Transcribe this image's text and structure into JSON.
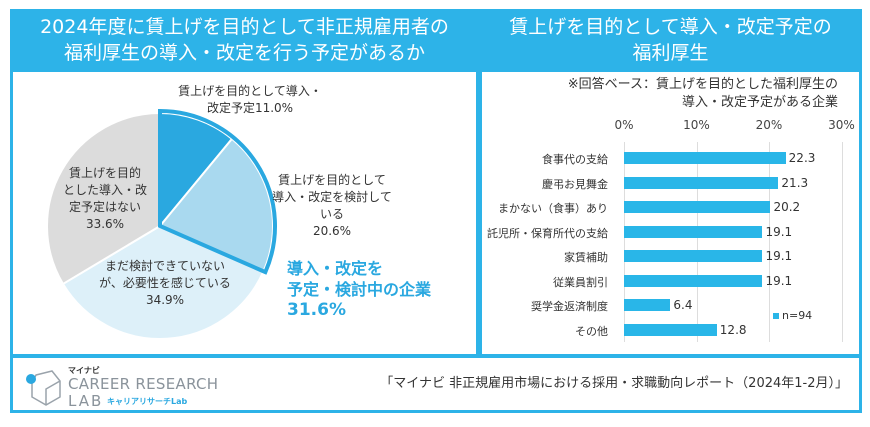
{
  "left": {
    "title_line1": "2024年度に賃上げを目的として非正規雇用者の",
    "title_line2": "福利厚生の導入・改定を行う予定があるか"
  },
  "right": {
    "title_line1": "賃上げを目的として導入・改定予定の",
    "title_line2": "福利厚生"
  },
  "chart_data": [
    {
      "type": "pie",
      "slices": [
        {
          "label_line1": "賃上げを目的として導入・",
          "label_line2": "改定予定11.0%",
          "value": 11.0,
          "color": "#2aa8e0"
        },
        {
          "label_line1": "賃上げを目的として",
          "label_line2": "導入・改定を検討して",
          "label_line3": "いる",
          "pct": "20.6%",
          "value": 20.6,
          "color": "#a9d9ef"
        },
        {
          "label_line1": "まだ検討できていない",
          "label_line2": "が、必要性を感じている",
          "pct": "34.9%",
          "value": 34.9,
          "color": "#ddf0f9"
        },
        {
          "label_line1": "賃上げを目的",
          "label_line2": "とした導入・改",
          "label_line3": "定予定はない",
          "pct": "33.6%",
          "value": 33.6,
          "color": "#dcdcdc"
        }
      ],
      "callout": {
        "line1": "導入・改定を",
        "line2": "予定・検討中の企業",
        "line3": "31.6%",
        "color": "#2aa8e0"
      }
    },
    {
      "type": "bar",
      "orientation": "horizontal",
      "note_line1": "※回答ベース：賃上げを目的とした福利厚生の",
      "note_line2": "導入・改定予定がある企業",
      "xlim": [
        0,
        30
      ],
      "ticks": [
        "0%",
        "10%",
        "20%",
        "30%"
      ],
      "categories": [
        "食事代の支給",
        "慶弔お見舞金",
        "まかない（食事）あり",
        "託児所・保育所代の支給",
        "家賃補助",
        "従業員割引",
        "奨学金返済制度",
        "その他"
      ],
      "values": [
        22.3,
        21.3,
        20.2,
        19.1,
        19.1,
        19.1,
        6.4,
        12.8
      ],
      "labels": [
        "22.3",
        "21.3",
        "20.2",
        "19.1",
        "19.1",
        "19.1",
        "6.4",
        "12.8"
      ],
      "legend": "n=94",
      "color": "#29b6e8",
      "grid": true
    }
  ],
  "footer": {
    "logo_small": "マイナビ",
    "logo_main": "CAREER RESEARCH",
    "logo_lab": "LAB",
    "logo_kana": "キャリアリサーチLab",
    "source": "「マイナビ 非正規雇用市場における採用・求職動向レポート（2024年1-2月）」"
  }
}
